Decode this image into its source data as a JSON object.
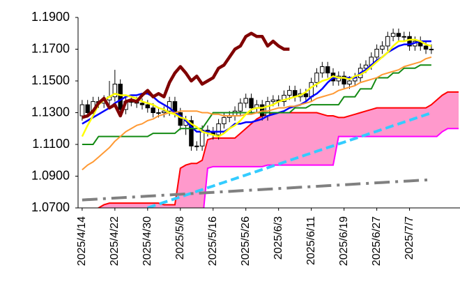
{
  "chart_data": {
    "type": "candlestick",
    "categories": [
      "2025/4/14",
      null,
      null,
      null,
      null,
      null,
      "2025/4/22",
      null,
      null,
      null,
      null,
      null,
      "2025/4/30",
      null,
      null,
      null,
      null,
      null,
      "2025/5/8",
      null,
      null,
      null,
      null,
      null,
      "2025/5/16",
      null,
      null,
      null,
      null,
      null,
      "2025/5/26",
      null,
      null,
      null,
      null,
      null,
      "2025/6/3",
      null,
      null,
      null,
      null,
      null,
      "2025/6/11",
      null,
      null,
      null,
      null,
      null,
      "2025/6/19",
      null,
      null,
      null,
      null,
      null,
      "2025/6/27",
      null,
      null,
      null,
      null,
      null,
      "2025/7/7",
      null,
      null,
      null,
      null,
      null,
      null,
      null,
      null,
      null
    ],
    "ylim": [
      1.07,
      1.19
    ],
    "yticks": [
      {
        "value": 1.07,
        "label": "1.0700"
      },
      {
        "value": 1.09,
        "label": "1.0900"
      },
      {
        "value": 1.11,
        "label": "1.1100"
      },
      {
        "value": 1.13,
        "label": "1.1300"
      },
      {
        "value": 1.15,
        "label": "1.1500"
      },
      {
        "value": 1.17,
        "label": "1.1700"
      },
      {
        "value": 1.19,
        "label": "1.1900"
      }
    ],
    "grid": false,
    "cloud_color": "#ff99cc",
    "span_a": {
      "color": "#ff0000",
      "values": [
        1.065,
        1.066,
        1.068,
        1.07,
        1.072,
        1.073,
        1.073,
        1.073,
        1.073,
        1.073,
        1.073,
        1.073,
        1.073,
        1.073,
        1.073,
        1.072,
        1.072,
        1.072,
        1.095,
        1.097,
        1.098,
        1.098,
        1.1,
        1.113,
        1.114,
        1.114,
        1.114,
        1.114,
        1.114,
        1.117,
        1.12,
        1.123,
        1.126,
        1.128,
        1.129,
        1.13,
        1.13,
        1.13,
        1.13,
        1.13,
        1.13,
        1.13,
        1.13,
        1.13,
        1.129,
        1.128,
        1.128,
        1.127,
        1.127,
        1.128,
        1.129,
        1.13,
        1.131,
        1.132,
        1.133,
        1.133,
        1.133,
        1.133,
        1.133,
        1.133,
        1.133,
        1.133,
        1.133,
        1.133,
        1.135,
        1.138,
        1.141,
        1.143,
        1.143,
        1.143
      ]
    },
    "span_b": {
      "color": "#ff00ff",
      "values": [
        1.06,
        1.06,
        1.06,
        1.06,
        1.06,
        1.06,
        1.06,
        1.06,
        1.06,
        1.06,
        1.06,
        1.06,
        1.06,
        1.06,
        1.06,
        1.06,
        1.06,
        1.06,
        1.06,
        1.06,
        1.06,
        1.06,
        1.06,
        1.095,
        1.096,
        1.096,
        1.096,
        1.096,
        1.096,
        1.096,
        1.096,
        1.096,
        1.096,
        1.096,
        1.097,
        1.097,
        1.097,
        1.097,
        1.097,
        1.097,
        1.097,
        1.097,
        1.097,
        1.097,
        1.097,
        1.097,
        1.097,
        1.115,
        1.115,
        1.115,
        1.115,
        1.115,
        1.115,
        1.115,
        1.115,
        1.115,
        1.115,
        1.115,
        1.115,
        1.115,
        1.115,
        1.115,
        1.115,
        1.115,
        1.115,
        1.115,
        1.118,
        1.12,
        1.12,
        1.12
      ]
    },
    "candles": {
      "up_color": "#ffffff",
      "down_color": "#000000",
      "open": [
        1.128,
        1.135,
        1.13,
        1.137,
        1.136,
        1.138,
        1.14,
        1.148,
        1.132,
        1.137,
        1.137,
        1.136,
        1.135,
        1.133,
        1.13,
        1.13,
        1.131,
        1.137,
        1.13,
        1.122,
        1.125,
        1.109,
        1.109,
        1.119,
        1.118,
        1.116,
        1.123,
        1.127,
        1.128,
        1.131,
        1.136,
        1.139,
        1.133,
        1.135,
        1.128,
        1.137,
        1.138,
        1.137,
        1.141,
        1.144,
        1.14,
        1.142,
        1.14,
        1.149,
        1.155,
        1.159,
        1.155,
        1.15,
        1.153,
        1.148,
        1.15,
        1.152,
        1.158,
        1.16,
        1.165,
        1.17,
        1.172,
        1.178,
        1.18,
        1.178,
        1.178,
        1.172,
        1.175,
        1.172,
        1.17
      ],
      "high": [
        1.138,
        1.138,
        1.14,
        1.14,
        1.141,
        1.15,
        1.157,
        1.151,
        1.14,
        1.14,
        1.14,
        1.139,
        1.138,
        1.136,
        1.133,
        1.134,
        1.14,
        1.14,
        1.133,
        1.128,
        1.128,
        1.112,
        1.122,
        1.122,
        1.121,
        1.126,
        1.13,
        1.131,
        1.134,
        1.139,
        1.142,
        1.142,
        1.138,
        1.138,
        1.14,
        1.141,
        1.141,
        1.144,
        1.147,
        1.147,
        1.145,
        1.145,
        1.152,
        1.158,
        1.162,
        1.162,
        1.158,
        1.156,
        1.156,
        1.153,
        1.155,
        1.161,
        1.163,
        1.168,
        1.173,
        1.175,
        1.181,
        1.183,
        1.183,
        1.181,
        1.181,
        1.178,
        1.178,
        1.175,
        1.173
      ],
      "low": [
        1.125,
        1.127,
        1.127,
        1.133,
        1.133,
        1.135,
        1.137,
        1.129,
        1.129,
        1.134,
        1.133,
        1.132,
        1.13,
        1.127,
        1.127,
        1.127,
        1.128,
        1.127,
        1.119,
        1.116,
        1.106,
        1.106,
        1.106,
        1.115,
        1.113,
        1.113,
        1.12,
        1.124,
        1.125,
        1.128,
        1.133,
        1.13,
        1.13,
        1.125,
        1.125,
        1.134,
        1.134,
        1.134,
        1.138,
        1.137,
        1.137,
        1.137,
        1.137,
        1.146,
        1.152,
        1.152,
        1.147,
        1.147,
        1.145,
        1.145,
        1.147,
        1.149,
        1.155,
        1.157,
        1.162,
        1.167,
        1.169,
        1.175,
        1.175,
        1.175,
        1.169,
        1.169,
        1.169,
        1.167,
        1.167
      ],
      "close": [
        1.135,
        1.13,
        1.137,
        1.136,
        1.138,
        1.14,
        1.148,
        1.132,
        1.137,
        1.137,
        1.136,
        1.135,
        1.133,
        1.13,
        1.13,
        1.131,
        1.137,
        1.13,
        1.122,
        1.125,
        1.109,
        1.109,
        1.119,
        1.118,
        1.116,
        1.123,
        1.127,
        1.128,
        1.131,
        1.136,
        1.139,
        1.133,
        1.135,
        1.128,
        1.137,
        1.138,
        1.137,
        1.141,
        1.144,
        1.14,
        1.142,
        1.14,
        1.149,
        1.155,
        1.159,
        1.155,
        1.15,
        1.153,
        1.148,
        1.15,
        1.152,
        1.158,
        1.16,
        1.165,
        1.17,
        1.172,
        1.178,
        1.18,
        1.178,
        1.178,
        1.172,
        1.175,
        1.172,
        1.17,
        1.17
      ]
    },
    "series": [
      {
        "color": "#0000ff",
        "width": 2.5,
        "style": "solid",
        "values": [
          1.123,
          1.125,
          1.127,
          1.129,
          1.131,
          1.133,
          1.136,
          1.138,
          1.14,
          1.141,
          1.141,
          1.142,
          1.142,
          1.14,
          1.137,
          1.135,
          1.133,
          1.13,
          1.128,
          1.125,
          1.121,
          1.118,
          1.118,
          1.118,
          1.118,
          1.118,
          1.118,
          1.12,
          1.123,
          1.123,
          1.124,
          1.124,
          1.125,
          1.126,
          1.128,
          1.129,
          1.13,
          1.131,
          1.133,
          1.134,
          1.135,
          1.137,
          1.14,
          1.142,
          1.145,
          1.149,
          1.152,
          1.152,
          1.152,
          1.152,
          1.152,
          1.155,
          1.157,
          1.16,
          1.163,
          1.165,
          1.168,
          1.17,
          1.172,
          1.173,
          1.173,
          1.174,
          1.175,
          1.175,
          1.175,
          null,
          null,
          null,
          null,
          null
        ]
      },
      {
        "color": "#138a13",
        "width": 2,
        "style": "solid",
        "values": [
          1.11,
          1.11,
          1.11,
          1.115,
          1.115,
          1.115,
          1.115,
          1.115,
          1.115,
          1.115,
          1.115,
          1.115,
          1.115,
          1.117,
          1.117,
          1.117,
          1.117,
          1.117,
          1.12,
          1.12,
          1.12,
          1.12,
          1.12,
          1.125,
          1.13,
          1.13,
          1.13,
          1.13,
          1.13,
          1.13,
          1.13,
          1.13,
          1.13,
          1.13,
          1.13,
          1.13,
          1.13,
          1.13,
          1.13,
          1.133,
          1.133,
          1.133,
          1.135,
          1.135,
          1.135,
          1.135,
          1.135,
          1.135,
          1.14,
          1.14,
          1.14,
          1.145,
          1.145,
          1.145,
          1.152,
          1.152,
          1.152,
          1.155,
          1.155,
          1.158,
          1.158,
          1.158,
          1.16,
          1.16,
          1.16,
          null,
          null,
          null,
          null,
          null
        ]
      },
      {
        "color": "#ff9933",
        "width": 2,
        "style": "solid",
        "values": [
          1.094,
          1.097,
          1.099,
          1.102,
          1.105,
          1.108,
          1.112,
          1.115,
          1.118,
          1.12,
          1.122,
          1.123,
          1.125,
          1.126,
          1.128,
          1.129,
          1.13,
          1.13,
          1.131,
          1.131,
          1.131,
          1.131,
          1.13,
          1.13,
          1.129,
          1.129,
          1.128,
          1.128,
          1.128,
          1.128,
          1.129,
          1.129,
          1.13,
          1.131,
          1.131,
          1.132,
          1.133,
          1.133,
          1.134,
          1.134,
          1.135,
          1.136,
          1.137,
          1.139,
          1.14,
          1.141,
          1.142,
          1.144,
          1.145,
          1.146,
          1.147,
          1.149,
          1.15,
          1.151,
          1.152,
          1.154,
          1.155,
          1.156,
          1.157,
          1.159,
          1.16,
          1.161,
          1.162,
          1.164,
          1.165,
          null,
          null,
          null,
          null,
          null
        ]
      },
      {
        "color": "#ffff00",
        "width": 2.5,
        "style": "solid",
        "values": [
          1.115,
          1.122,
          1.128,
          1.135,
          1.138,
          1.14,
          1.142,
          1.141,
          1.141,
          1.14,
          1.139,
          1.137,
          1.136,
          1.135,
          1.133,
          1.132,
          1.13,
          1.129,
          1.127,
          1.126,
          1.123,
          1.121,
          1.118,
          1.117,
          1.116,
          1.115,
          1.117,
          1.12,
          1.122,
          1.125,
          1.129,
          1.132,
          1.133,
          1.133,
          1.134,
          1.135,
          1.137,
          1.138,
          1.139,
          1.14,
          1.141,
          1.143,
          1.146,
          1.148,
          1.15,
          1.151,
          1.153,
          1.152,
          1.152,
          1.151,
          1.153,
          1.154,
          1.156,
          1.159,
          1.162,
          1.165,
          1.168,
          1.172,
          1.175,
          1.175,
          1.176,
          1.176,
          1.175,
          1.173,
          1.172,
          null,
          null,
          null,
          null,
          null
        ]
      },
      {
        "color": "#800000",
        "width": 4.5,
        "style": "solid",
        "values": [
          1.127,
          1.128,
          1.131,
          1.136,
          1.139,
          1.133,
          1.135,
          1.128,
          1.137,
          1.138,
          1.137,
          1.141,
          1.144,
          1.14,
          1.142,
          1.14,
          1.149,
          1.155,
          1.159,
          1.155,
          1.15,
          1.153,
          1.148,
          1.15,
          1.152,
          1.158,
          1.16,
          1.165,
          1.17,
          1.172,
          1.178,
          1.18,
          1.178,
          1.178,
          1.172,
          1.175,
          1.172,
          1.17,
          1.17,
          null,
          null,
          null,
          null,
          null,
          null,
          null,
          null,
          null,
          null,
          null,
          null,
          null,
          null,
          null,
          null,
          null,
          null,
          null,
          null,
          null,
          null,
          null,
          null,
          null,
          null,
          null,
          null,
          null,
          null,
          null
        ]
      },
      {
        "color": "#33ccff",
        "width": 4,
        "style": "dashed",
        "values": [
          null,
          null,
          null,
          null,
          null,
          null,
          null,
          null,
          null,
          null,
          null,
          null,
          1.07,
          1.0712,
          1.0723,
          1.0735,
          1.0746,
          1.0758,
          1.0769,
          1.0781,
          1.0792,
          1.0804,
          1.0815,
          1.0827,
          1.0838,
          1.085,
          1.0861,
          1.0873,
          1.0884,
          1.0896,
          1.0907,
          1.0919,
          1.093,
          1.0942,
          1.0953,
          1.0965,
          1.0976,
          1.0988,
          1.0999,
          1.1011,
          1.1022,
          1.1034,
          1.1045,
          1.1057,
          1.1068,
          1.108,
          1.1091,
          1.1103,
          1.1114,
          1.1126,
          1.1137,
          1.1149,
          1.116,
          1.1172,
          1.1183,
          1.1195,
          1.1206,
          1.1218,
          1.1229,
          1.1241,
          1.1252,
          1.1264,
          1.1275,
          1.1287,
          1.1298,
          null,
          null,
          null,
          null,
          null
        ]
      },
      {
        "color": "#808080",
        "width": 4,
        "style": "dashdot",
        "values": [
          1.075,
          1.0752,
          1.0754,
          1.0756,
          1.0758,
          1.076,
          1.0762,
          1.0764,
          1.0766,
          1.0768,
          1.077,
          1.0772,
          1.0774,
          1.0776,
          1.0778,
          1.078,
          1.0782,
          1.0784,
          1.0786,
          1.0788,
          1.079,
          1.0792,
          1.0794,
          1.0796,
          1.0798,
          1.08,
          1.0802,
          1.0804,
          1.0806,
          1.0808,
          1.081,
          1.0812,
          1.0814,
          1.0816,
          1.0818,
          1.082,
          1.0822,
          1.0824,
          1.0826,
          1.0828,
          1.083,
          1.0832,
          1.0834,
          1.0836,
          1.0838,
          1.084,
          1.0842,
          1.0844,
          1.0846,
          1.0848,
          1.085,
          1.0852,
          1.0854,
          1.0856,
          1.0858,
          1.086,
          1.0862,
          1.0864,
          1.0866,
          1.0868,
          1.087,
          1.0872,
          1.0874,
          1.0876,
          1.0878,
          null,
          null,
          null,
          null,
          null
        ]
      }
    ]
  }
}
